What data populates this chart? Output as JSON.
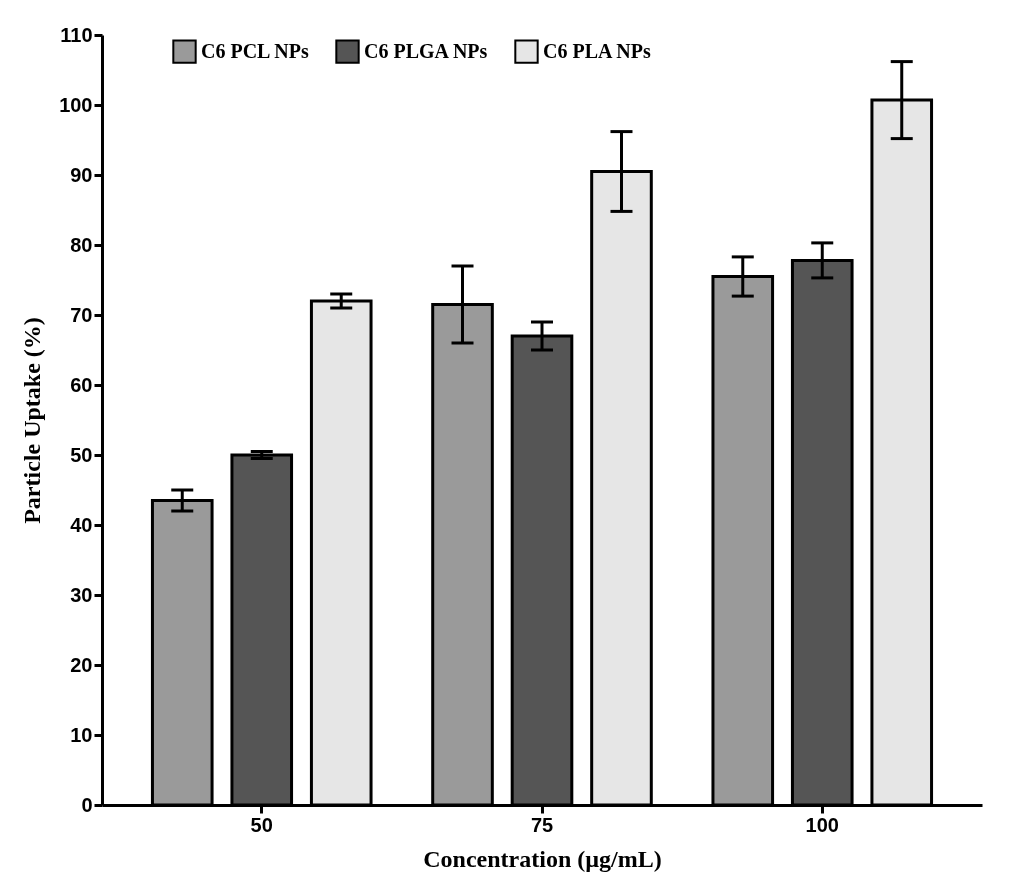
{
  "chart_data": {
    "type": "bar",
    "xlabel": "Concentration (µg/mL)",
    "ylabel": "Particle Uptake (%)",
    "categories": [
      "50",
      "75",
      "100"
    ],
    "series": [
      {
        "name": "C6 PCL NPs",
        "color": "#9a9a9a",
        "values": [
          43.5,
          71.5,
          75.5
        ],
        "errors": [
          1.5,
          5.5,
          2.8
        ]
      },
      {
        "name": "C6 PLGA NPs",
        "color": "#555555",
        "values": [
          50,
          67,
          77.8
        ],
        "errors": [
          0.5,
          2,
          2.5
        ]
      },
      {
        "name": "C6 PLA NPs",
        "color": "#e6e6e6",
        "values": [
          72,
          90.5,
          100.7
        ],
        "errors": [
          1,
          5.7,
          5.5
        ]
      }
    ],
    "ylim": [
      0,
      110
    ],
    "yticks": [
      0,
      10,
      20,
      30,
      40,
      50,
      60,
      70,
      80,
      90,
      100,
      110
    ],
    "grid": false,
    "legend": "top"
  }
}
